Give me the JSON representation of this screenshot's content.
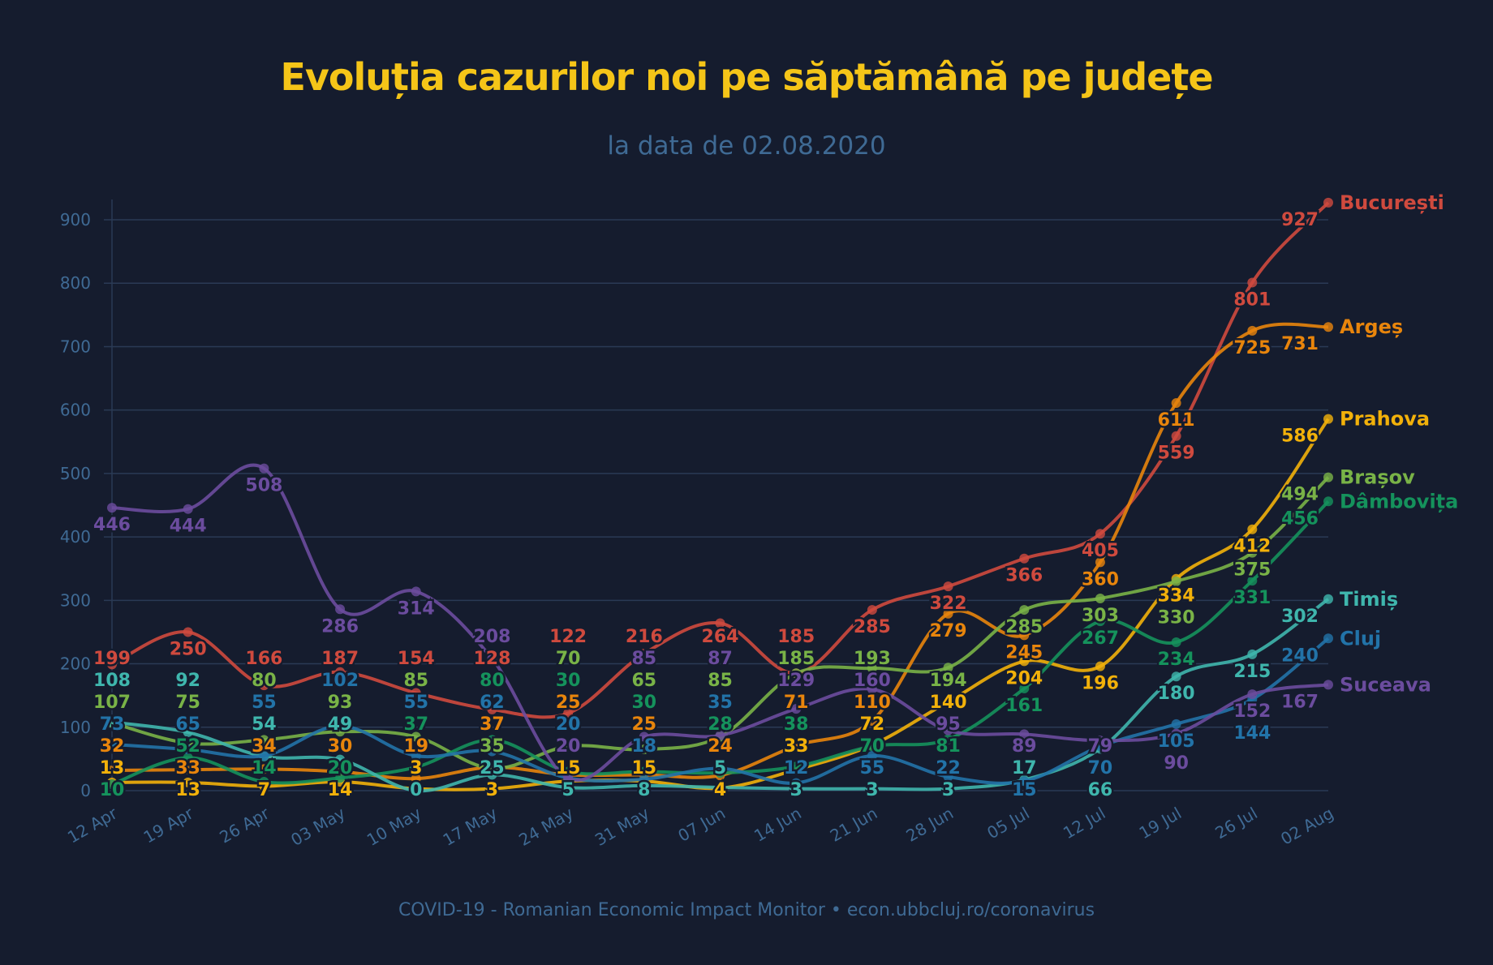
{
  "chart_data": {
    "type": "line",
    "title": "Evoluția cazurilor noi pe săptămână pe județe",
    "subtitle": "la data de 02.08.2020",
    "footer": "COVID-19 - Romanian Economic Impact Monitor • econ.ubbcluj.ro/coronavirus",
    "x": [
      "12 Apr",
      "19 Apr",
      "26 Apr",
      "03 May",
      "10 May",
      "17 May",
      "24 May",
      "31 May",
      "07 Jun",
      "14 Jun",
      "21 Jun",
      "28 Jun",
      "05 Jul",
      "12 Jul",
      "19 Jul",
      "26 Jul",
      "02 Aug"
    ],
    "ylim": [
      0,
      930
    ],
    "yticks": [
      0,
      100,
      200,
      300,
      400,
      500,
      600,
      700,
      800,
      900
    ],
    "grid": true,
    "legend": "right-end labels",
    "background": "#151c2e",
    "series": [
      {
        "name": "București",
        "color": "#cf4a3e",
        "values": [
          199,
          250,
          166,
          187,
          154,
          128,
          122,
          216,
          264,
          185,
          285,
          322,
          366,
          405,
          559,
          801,
          927
        ]
      },
      {
        "name": "Argeș",
        "color": "#e8850c",
        "values": [
          32,
          33,
          34,
          30,
          19,
          37,
          25,
          25,
          24,
          71,
          110,
          279,
          245,
          360,
          611,
          725,
          731
        ]
      },
      {
        "name": "Prahova",
        "color": "#f2b10a",
        "values": [
          13,
          13,
          7,
          14,
          3,
          3,
          15,
          15,
          4,
          33,
          72,
          140,
          204,
          196,
          334,
          412,
          586
        ]
      },
      {
        "name": "Brașov",
        "color": "#79b347",
        "values": [
          107,
          75,
          80,
          93,
          85,
          35,
          70,
          65,
          85,
          185,
          193,
          194,
          285,
          303,
          330,
          375,
          494
        ]
      },
      {
        "name": "Dâmbovița",
        "color": "#15925c",
        "values": [
          10,
          52,
          14,
          20,
          37,
          80,
          30,
          30,
          28,
          38,
          70,
          81,
          161,
          267,
          234,
          331,
          456
        ]
      },
      {
        "name": "Timiș",
        "color": "#3fb6ad",
        "values": [
          108,
          92,
          54,
          49,
          0,
          25,
          5,
          8,
          5,
          3,
          3,
          3,
          17,
          66,
          180,
          215,
          302
        ]
      },
      {
        "name": "Cluj",
        "color": "#2273a8",
        "values": [
          73,
          65,
          55,
          102,
          55,
          62,
          20,
          18,
          35,
          12,
          55,
          22,
          15,
          70,
          105,
          144,
          240
        ]
      },
      {
        "name": "Suceava",
        "color": "#6b4c9e",
        "values": [
          446,
          444,
          508,
          286,
          314,
          208,
          20,
          85,
          87,
          129,
          160,
          95,
          89,
          79,
          90,
          152,
          167
        ]
      }
    ]
  }
}
